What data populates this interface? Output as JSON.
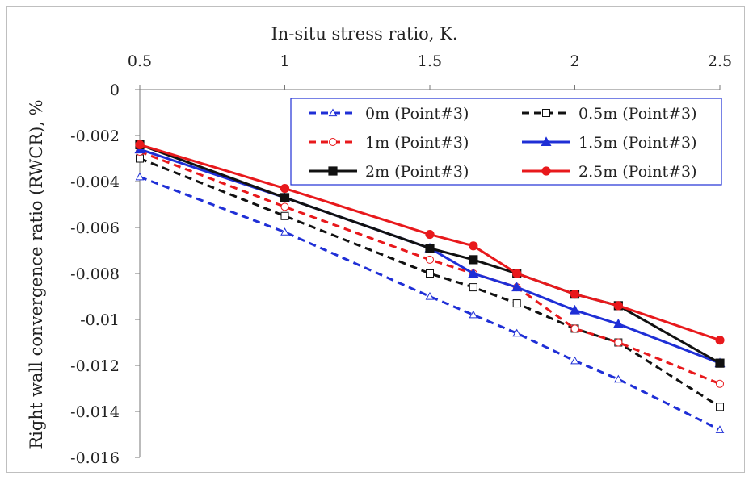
{
  "chart_data": {
    "type": "line",
    "title": "",
    "xlabel": "In-situ stress ratio, K.",
    "ylabel": "Right wall convergence ratio (RWCR), %",
    "xlim": [
      0.5,
      2.5
    ],
    "ylim": [
      -0.016,
      0
    ],
    "x_axis_position": "top",
    "grid": false,
    "legend_position": "top-right",
    "x_ticks": [
      0.5,
      1,
      1.5,
      2,
      2.5
    ],
    "x_tick_labels": [
      "0.5",
      "1",
      "1.5",
      "2",
      "2.5"
    ],
    "y_ticks": [
      0,
      -0.002,
      -0.004,
      -0.006,
      -0.008,
      -0.01,
      -0.012,
      -0.014,
      -0.016
    ],
    "y_tick_labels": [
      "0",
      "-0.002",
      "-0.004",
      "-0.006",
      "-0.008",
      "-0.01",
      "-0.012",
      "-0.014",
      "-0.016"
    ],
    "x": [
      0.5,
      1,
      1.5,
      1.65,
      1.8,
      2,
      2.15,
      2.5
    ],
    "series": [
      {
        "name": "0m (Point#3)",
        "color": "#1f2fd6",
        "dash": "dashed",
        "marker": "triangle-open",
        "values": [
          -0.0038,
          -0.0062,
          -0.009,
          -0.0098,
          -0.0106,
          -0.0118,
          -0.0126,
          -0.0148
        ]
      },
      {
        "name": "0.5m (Point#3)",
        "color": "#111111",
        "dash": "dashed",
        "marker": "square-open",
        "values": [
          -0.003,
          -0.0055,
          -0.008,
          -0.0086,
          -0.0093,
          -0.0104,
          -0.011,
          -0.0138
        ]
      },
      {
        "name": "1m (Point#3)",
        "color": "#e8191c",
        "dash": "dashed",
        "marker": "circle-open",
        "values": [
          -0.0027,
          -0.0051,
          -0.0074,
          -0.008,
          -0.0086,
          -0.0104,
          -0.011,
          -0.0128
        ]
      },
      {
        "name": "1.5m (Point#3)",
        "color": "#1f2fd6",
        "dash": "solid",
        "marker": "triangle-filled",
        "values": [
          -0.0026,
          -0.0047,
          -0.0069,
          -0.008,
          -0.0086,
          -0.0096,
          -0.0102,
          -0.0119
        ]
      },
      {
        "name": "2m (Point#3)",
        "color": "#111111",
        "dash": "solid",
        "marker": "square-filled",
        "values": [
          -0.0024,
          -0.0047,
          -0.0069,
          -0.0074,
          -0.008,
          -0.0089,
          -0.0094,
          -0.0119
        ]
      },
      {
        "name": "2.5m (Point#3)",
        "color": "#e8191c",
        "dash": "solid",
        "marker": "circle-filled",
        "values": [
          -0.0024,
          -0.0043,
          -0.0063,
          -0.0068,
          -0.008,
          -0.0089,
          -0.0094,
          -0.0109
        ]
      }
    ]
  }
}
